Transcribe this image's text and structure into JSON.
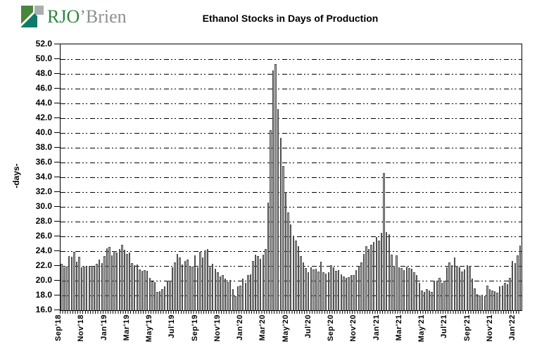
{
  "logo": {
    "text_primary": "RJO",
    "text_secondary": "’Brien",
    "colors": {
      "primary_text": "#2e8540",
      "secondary_text": "#8d9091",
      "mark_green": "#49853c",
      "mark_teal": "#0f7a6c",
      "mark_gray": "#a9aeae"
    }
  },
  "chart_data": {
    "type": "bar",
    "title": "Ethanol Stocks in Days of Production",
    "xlabel": "",
    "ylabel": "-days-",
    "ylim": [
      16.0,
      52.0
    ],
    "ytick_step": 2.0,
    "ytick_labels": [
      "52.0",
      "50.0",
      "48.0",
      "46.0",
      "44.0",
      "42.0",
      "40.0",
      "38.0",
      "36.0",
      "34.0",
      "32.0",
      "30.0",
      "28.0",
      "26.0",
      "24.0",
      "22.0",
      "20.0",
      "18.0",
      "16.0"
    ],
    "x_tick_labels": [
      "Sep'18",
      "Nov'18",
      "Jan'19",
      "Mar'19",
      "May'19",
      "Jul'19",
      "Sep'19",
      "Nov'19",
      "Jan'20",
      "Mar'20",
      "May'20",
      "Jul'20",
      "Sep'20",
      "Nov'20",
      "Jan'21",
      "Mar'21",
      "May'21",
      "Jul'21",
      "Sep'21",
      "Nov'21",
      "Jan'22"
    ],
    "x_frequency": "weekly",
    "grid": "dash-dot horizontal",
    "legend": "none",
    "bar_color": "#b5b5b5",
    "bar_edge_color": "#4f4f4f",
    "values": [
      22.3,
      21.8,
      21.9,
      23.3,
      23.2,
      23.9,
      22.6,
      23.2,
      21.8,
      21.9,
      21.9,
      22.0,
      22.0,
      21.9,
      22.3,
      22.9,
      22.4,
      23.3,
      24.4,
      24.6,
      23.4,
      24.0,
      23.8,
      24.3,
      24.9,
      24.2,
      23.6,
      23.8,
      22.4,
      22.1,
      22.2,
      21.5,
      21.3,
      21.4,
      21.3,
      20.4,
      19.9,
      19.8,
      18.5,
      18.6,
      18.9,
      19.2,
      20.0,
      20.0,
      21.8,
      22.5,
      23.6,
      23.1,
      22.2,
      22.7,
      22.9,
      21.9,
      21.9,
      23.4,
      21.8,
      23.9,
      23.1,
      24.1,
      24.3,
      21.8,
      22.3,
      21.6,
      21.1,
      20.6,
      20.8,
      20.3,
      19.8,
      20.1,
      18.9,
      17.9,
      19.2,
      19.3,
      20.3,
      19.7,
      20.8,
      20.9,
      22.7,
      23.5,
      23.3,
      23.0,
      23.5,
      24.3,
      30.6,
      40.4,
      48.5,
      49.3,
      43.2,
      39.3,
      35.5,
      32.0,
      29.2,
      27.6,
      26.1,
      25.4,
      24.7,
      23.3,
      22.5,
      21.7,
      21.1,
      21.8,
      21.5,
      21.6,
      21.2,
      22.6,
      21.1,
      21.0,
      21.1,
      22.1,
      21.8,
      21.3,
      21.4,
      20.9,
      20.6,
      20.4,
      20.5,
      20.8,
      20.8,
      21.4,
      22.0,
      22.5,
      23.6,
      24.7,
      24.3,
      24.9,
      25.2,
      25.9,
      25.4,
      26.5,
      34.6,
      26.6,
      26.3,
      23.5,
      22.0,
      23.4,
      21.8,
      21.7,
      21.4,
      21.9,
      21.7,
      21.6,
      21.1,
      20.8,
      19.7,
      18.7,
      18.5,
      18.9,
      18.7,
      18.5,
      20.0,
      20.0,
      20.4,
      19.7,
      20.0,
      21.8,
      22.5,
      22.1,
      23.1,
      22.0,
      21.8,
      21.2,
      21.5,
      22.1,
      22.0,
      20.3,
      19.0,
      18.2,
      18.0,
      18.1,
      17.9,
      19.3,
      18.9,
      18.7,
      18.6,
      18.4,
      19.2,
      19.3,
      19.7,
      19.5,
      20.4,
      22.7,
      22.4,
      23.4,
      24.8
    ]
  }
}
